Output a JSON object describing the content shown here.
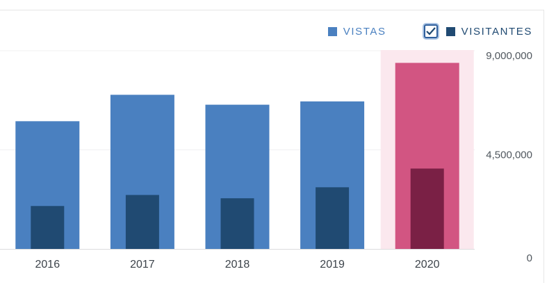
{
  "legend": {
    "views_label": "VISTAS",
    "visitors_label": "VISITANTES",
    "visitors_checked": true
  },
  "colors": {
    "views": "#4a80c0",
    "visitors": "#204a72",
    "highlight_views": "#d25582",
    "highlight_visitors": "#7a2045",
    "highlight_band": "#fbe8ee"
  },
  "chart_data": {
    "type": "bar",
    "categories": [
      "2016",
      "2017",
      "2018",
      "2019",
      "2020"
    ],
    "series": [
      {
        "name": "VISTAS",
        "values": [
          5800000,
          7000000,
          6550000,
          6700000,
          8450000
        ]
      },
      {
        "name": "VISITANTES",
        "values": [
          1950000,
          2450000,
          2300000,
          2800000,
          3650000
        ]
      }
    ],
    "highlighted_category": "2020",
    "y_ticks": [
      "9,000,000",
      "4,500,000",
      "0"
    ],
    "y_tick_values": [
      9000000,
      4500000,
      0
    ],
    "ylim": [
      0,
      9000000
    ],
    "grid": true
  }
}
